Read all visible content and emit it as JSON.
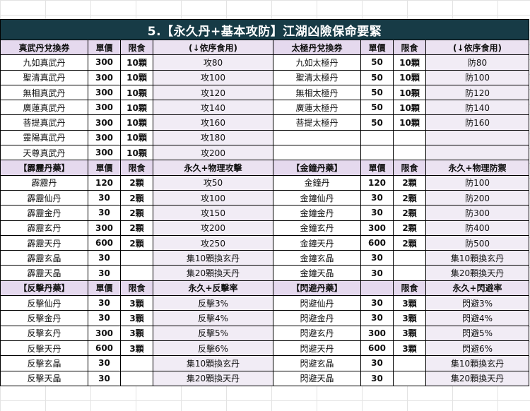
{
  "title": "5.【永久丹+基本攻防】江湖凶險保命要緊",
  "sections": [
    {
      "header_left": [
        "真武丹兌換券",
        "單價",
        "限食",
        "(↓依序食用)"
      ],
      "header_right": [
        "太極丹兌換券",
        "單價",
        "限食",
        "(↓依序食用)"
      ],
      "rows": [
        [
          [
            "九如真武丹",
            "300",
            "10顆",
            "攻80"
          ],
          [
            "九如太極丹",
            "50",
            "10顆",
            "防80"
          ]
        ],
        [
          [
            "聖清真武丹",
            "300",
            "10顆",
            "攻100"
          ],
          [
            "聖清太極丹",
            "50",
            "10顆",
            "防100"
          ]
        ],
        [
          [
            "無相真武丹",
            "300",
            "10顆",
            "攻120"
          ],
          [
            "無相太極丹",
            "50",
            "10顆",
            "防120"
          ]
        ],
        [
          [
            "廣蓮真武丹",
            "300",
            "10顆",
            "攻140"
          ],
          [
            "廣蓮太極丹",
            "50",
            "10顆",
            "防140"
          ]
        ],
        [
          [
            "菩提真武丹",
            "300",
            "10顆",
            "攻160"
          ],
          [
            "菩提太極丹",
            "50",
            "10顆",
            "防160"
          ]
        ],
        [
          [
            "靈陽真武丹",
            "300",
            "10顆",
            "攻180"
          ],
          [
            "",
            "",
            "",
            ""
          ]
        ],
        [
          [
            "天尊真武丹",
            "300",
            "10顆",
            "攻200"
          ],
          [
            "",
            "",
            "",
            ""
          ]
        ]
      ]
    },
    {
      "header_left": [
        "【霹靂丹藥】",
        "單價",
        "限食",
        "永久+物理攻擊"
      ],
      "header_right": [
        "【金鐘丹藥】",
        "單價",
        "限食",
        "永久+物理防禦"
      ],
      "rows": [
        [
          [
            "霹靂丹",
            "120",
            "2顆",
            "攻50"
          ],
          [
            "金鐘丹",
            "120",
            "2顆",
            "防100"
          ]
        ],
        [
          [
            "霹靂仙丹",
            "30",
            "2顆",
            "攻100"
          ],
          [
            "金鐘仙丹",
            "30",
            "2顆",
            "防200"
          ]
        ],
        [
          [
            "霹靂金丹",
            "30",
            "2顆",
            "攻150"
          ],
          [
            "金鐘金丹",
            "30",
            "2顆",
            "防300"
          ]
        ],
        [
          [
            "霹靂玄丹",
            "300",
            "2顆",
            "攻200"
          ],
          [
            "金鐘玄丹",
            "300",
            "2顆",
            "防400"
          ]
        ],
        [
          [
            "霹靂天丹",
            "600",
            "2顆",
            "攻250"
          ],
          [
            "金鐘天丹",
            "600",
            "2顆",
            "防500"
          ]
        ],
        [
          [
            "霹靂玄晶",
            "30",
            "",
            "集10顆換玄丹"
          ],
          [
            "金鐘玄晶",
            "30",
            "",
            "集10顆換玄丹"
          ]
        ],
        [
          [
            "霹靂天晶",
            "30",
            "",
            "集20顆換天丹"
          ],
          [
            "金鐘天晶",
            "30",
            "",
            "集20顆換天丹"
          ]
        ]
      ]
    },
    {
      "header_left": [
        "【反擊丹藥】",
        "單價",
        "限食",
        "永久+反擊率"
      ],
      "header_right": [
        "【閃避丹藥】",
        "",
        "限食",
        "永久+閃避率"
      ],
      "rows": [
        [
          [
            "反擊仙丹",
            "30",
            "3顆",
            "反擊3%"
          ],
          [
            "閃避仙丹",
            "30",
            "3顆",
            "閃避3%"
          ]
        ],
        [
          [
            "反擊金丹",
            "30",
            "3顆",
            "反擊4%"
          ],
          [
            "閃避金丹",
            "30",
            "3顆",
            "閃避4%"
          ]
        ],
        [
          [
            "反擊玄丹",
            "300",
            "3顆",
            "反擊5%"
          ],
          [
            "閃避玄丹",
            "300",
            "3顆",
            "閃避5%"
          ]
        ],
        [
          [
            "反擊天丹",
            "600",
            "3顆",
            "反擊6%"
          ],
          [
            "閃避天丹",
            "600",
            "3顆",
            "閃避6%"
          ]
        ],
        [
          [
            "反擊玄晶",
            "30",
            "",
            "集10顆換玄丹"
          ],
          [
            "閃避玄晶",
            "30",
            "",
            "集10顆換玄丹"
          ]
        ],
        [
          [
            "反擊天晶",
            "30",
            "",
            "集20顆換天丹"
          ],
          [
            "閃避天晶",
            "30",
            "",
            "集20顆換天丹"
          ]
        ]
      ]
    }
  ]
}
